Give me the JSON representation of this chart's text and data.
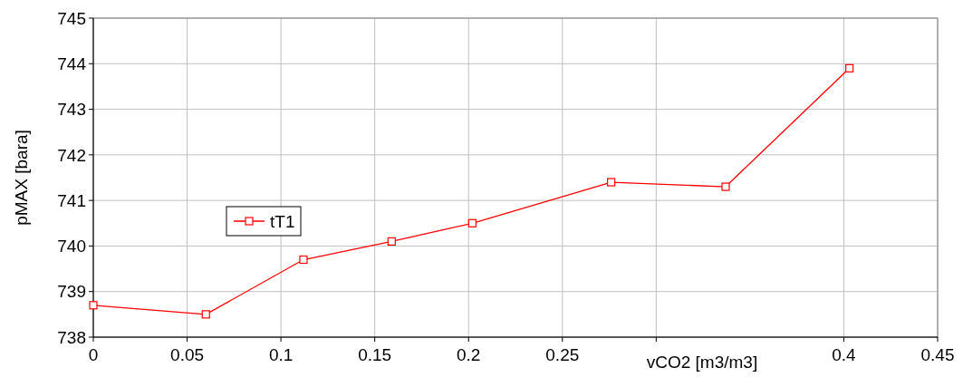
{
  "chart_data": {
    "type": "line",
    "xlabel": "vCO2 [m3/m3]",
    "ylabel": "pMAX [bara]",
    "x": [
      0,
      0.06,
      0.112,
      0.159,
      0.202,
      0.276,
      0.337,
      0.403
    ],
    "series": [
      {
        "name": "tT1",
        "color": "#ff0000",
        "values": [
          738.7,
          738.5,
          739.7,
          740.1,
          740.5,
          741.4,
          741.3,
          743.9
        ]
      }
    ],
    "xlim": [
      0,
      0.45
    ],
    "xticks": [
      0,
      0.05,
      0.1,
      0.15,
      0.2,
      0.25,
      {
        "value": 0.3,
        "label": null
      },
      0.4,
      0.45
    ],
    "ylim": [
      738,
      745
    ],
    "yticks": [
      738,
      739,
      740,
      741,
      742,
      743,
      744,
      745
    ],
    "grid": true,
    "legend": "left",
    "marker": "square",
    "line_style": "solid"
  }
}
